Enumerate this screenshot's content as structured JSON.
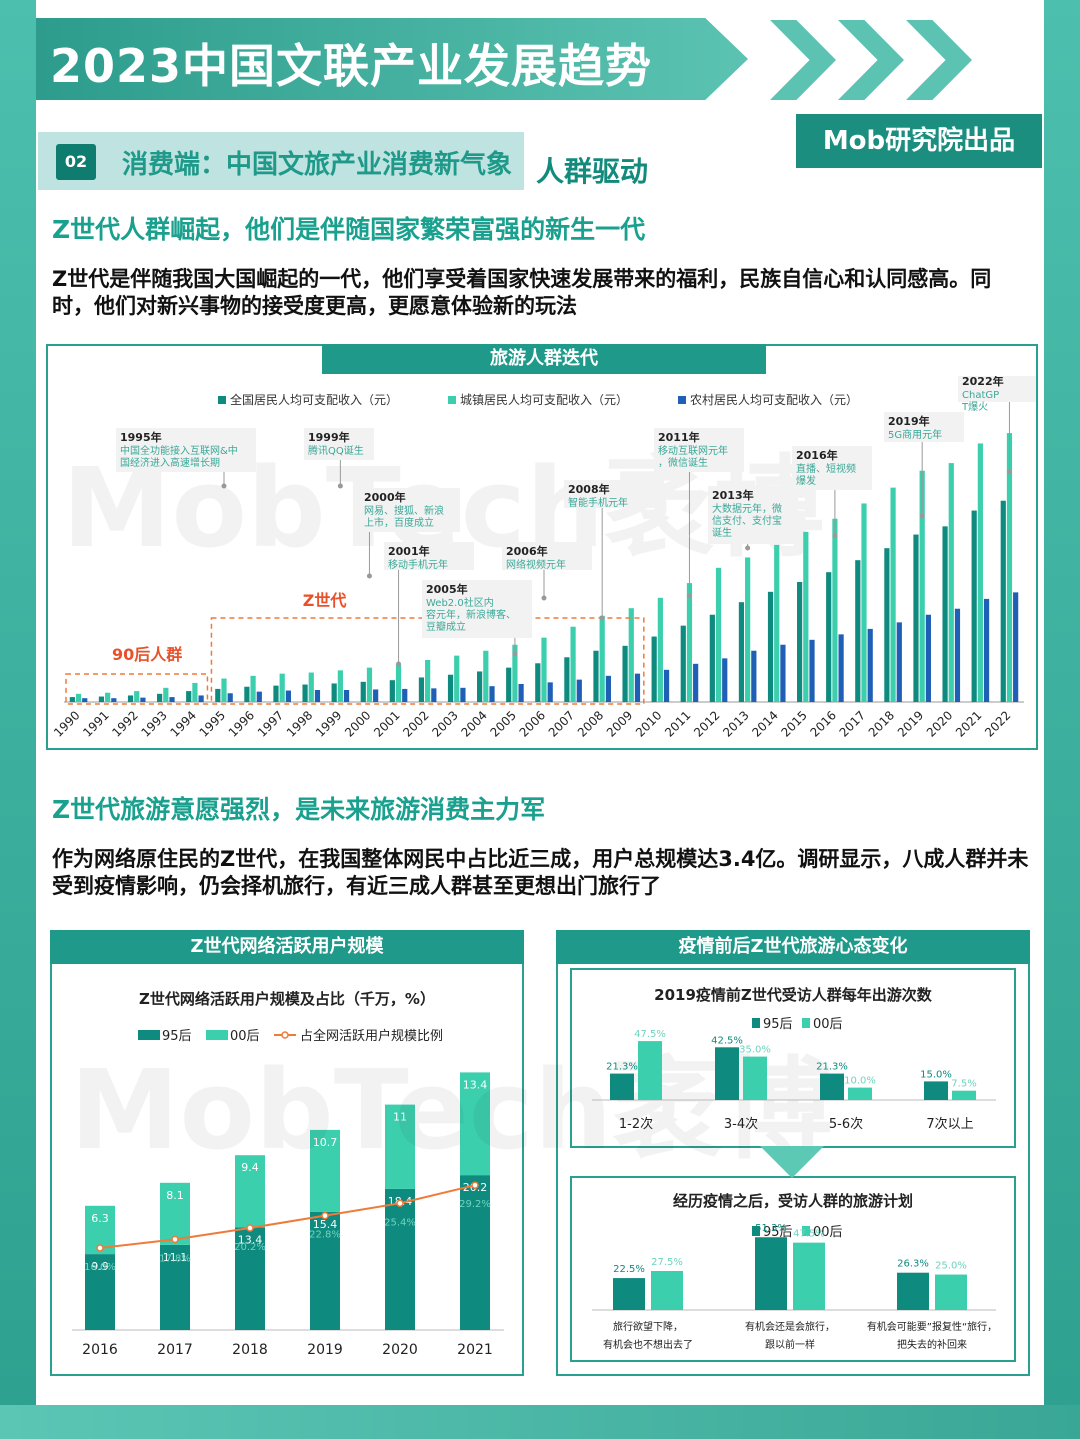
{
  "header": {
    "title": "2023中国文联产业发展趋势",
    "badge": "Mob研究院出品"
  },
  "section": {
    "number": "02",
    "label": "消费端：中国文旅产业消费新气象",
    "tag": "人群驱动"
  },
  "block1": {
    "heading": "Z世代人群崛起，他们是伴随国家繁荣富强的新生一代",
    "para": "Z世代是伴随我国大国崛起的一代，他们享受着国家快速发展带来的福利，民族自信心和认同感高。同时，他们对新兴事物的接受度更高，更愿意体验新的玩法"
  },
  "block2": {
    "heading": "Z世代旅游意愿强烈，是未来旅游消费主力军",
    "para": "作为网络原住民的Z世代，在我国整体网民中占比近三成，用户总规模达3.4亿。调研显示，八成人群并未受到疫情影响，仍会择机旅行，有近三成人群甚至更想出门旅行了"
  },
  "watermark": "MobTech袤博",
  "colors": {
    "teal_dark": "#0f8a7e",
    "teal_light": "#3ccfae",
    "blue": "#1f5fb5",
    "orange": "#f07a3a",
    "red_label": "#e8512a"
  },
  "chart_data": [
    {
      "type": "bar",
      "title": "旅游人群迭代",
      "categories": [
        "1990",
        "1991",
        "1992",
        "1993",
        "1994",
        "1995",
        "1996",
        "1997",
        "1998",
        "1999",
        "2000",
        "2001",
        "2002",
        "2003",
        "2004",
        "2005",
        "2006",
        "2007",
        "2008",
        "2009",
        "2010",
        "2011",
        "2012",
        "2013",
        "2014",
        "2015",
        "2016",
        "2017",
        "2018",
        "2019",
        "2020",
        "2021",
        "2022"
      ],
      "series": [
        {
          "name": "全国居民人均可支配收入（元）",
          "color": "#0f8a7e",
          "values": [
            900,
            1000,
            1200,
            1500,
            2000,
            2400,
            2800,
            3000,
            3200,
            3400,
            3700,
            4000,
            4500,
            5000,
            5600,
            6300,
            7100,
            8200,
            9400,
            10300,
            12000,
            14000,
            16000,
            18300,
            20200,
            22000,
            23800,
            26000,
            28200,
            30700,
            32200,
            35100,
            36900
          ]
        },
        {
          "name": "城镇居民人均可支配收入（元）",
          "color": "#3ccfae",
          "values": [
            1500,
            1700,
            2000,
            2600,
            3500,
            4300,
            4800,
            5200,
            5400,
            5800,
            6300,
            6900,
            7700,
            8500,
            9400,
            10500,
            11800,
            13800,
            15800,
            17200,
            19100,
            21800,
            24600,
            26500,
            28800,
            31200,
            33600,
            36400,
            39300,
            42400,
            43800,
            47400,
            49300
          ]
        },
        {
          "name": "农村居民人均可支配收入（元）",
          "color": "#1f5fb5",
          "values": [
            700,
            700,
            800,
            900,
            1200,
            1600,
            1900,
            2100,
            2200,
            2200,
            2300,
            2400,
            2500,
            2600,
            2900,
            3300,
            3600,
            4100,
            4800,
            5200,
            5900,
            7000,
            8000,
            9400,
            10500,
            11400,
            12400,
            13400,
            14600,
            16000,
            17100,
            18900,
            20100
          ]
        }
      ],
      "ylim": [
        0,
        55000
      ],
      "milestones": [
        {
          "year": "1995年",
          "text": "中国全功能接入互联网&中国经济进入高速增长期",
          "at": "1995"
        },
        {
          "year": "1999年",
          "text": "腾讯QQ诞生",
          "at": "1999"
        },
        {
          "year": "2000年",
          "text": "网易、搜狐、新浪上市，百度成立",
          "at": "2000"
        },
        {
          "year": "2001年",
          "text": "移动手机元年",
          "at": "2001"
        },
        {
          "year": "2005年",
          "text": "Web2.0社区内容元年，新浪博客、豆瓣成立",
          "at": "2005"
        },
        {
          "year": "2006年",
          "text": "网络视频元年",
          "at": "2006"
        },
        {
          "year": "2008年",
          "text": "智能手机元年",
          "at": "2008"
        },
        {
          "year": "2011年",
          "text": "移动互联网元年，微信诞生",
          "at": "2011"
        },
        {
          "year": "2013年",
          "text": "大数据元年，微信支付、支付宝诞生",
          "at": "2013"
        },
        {
          "year": "2016年",
          "text": "直播、短视频爆发",
          "at": "2016"
        },
        {
          "year": "2019年",
          "text": "5G商用元年",
          "at": "2019"
        },
        {
          "year": "2022年",
          "text": "ChatGPT爆火",
          "at": "2022"
        }
      ],
      "groups": [
        {
          "label": "90后人群",
          "from": "1990",
          "to": "1994"
        },
        {
          "label": "Z世代",
          "from": "1995",
          "to": "2009"
        }
      ]
    },
    {
      "type": "bar",
      "card_title": "Z世代网络活跃用户规模",
      "title": "Z世代网络活跃用户规模及占比（千万，%）",
      "categories": [
        "2016",
        "2017",
        "2018",
        "2019",
        "2020",
        "2021"
      ],
      "series": [
        {
          "name": "95后",
          "color": "#0f8a7e",
          "values": [
            9.9,
            11.1,
            13.4,
            15.4,
            18.4,
            20.2
          ]
        },
        {
          "name": "00后",
          "color": "#3ccfae",
          "values": [
            6.3,
            8.1,
            9.4,
            10.7,
            11.0,
            13.4
          ]
        }
      ],
      "line": {
        "name": "占全网活跃用户规模比例",
        "color": "#f07a3a",
        "values": [
          16.0,
          17.8,
          20.2,
          22.8,
          25.4,
          29.2
        ],
        "labels": [
          "16.0%",
          "17.8%",
          "20.2%",
          "22.8%",
          "25.4%",
          "29.2%"
        ]
      },
      "ylim": [
        0,
        36
      ]
    },
    {
      "type": "bar",
      "card_title": "疫情前后Z世代旅游心态变化",
      "title": "2019疫情前Z世代受访人群每年出游次数",
      "categories": [
        "1-2次",
        "3-4次",
        "5-6次",
        "7次以上"
      ],
      "series": [
        {
          "name": "95后",
          "color": "#0f8a7e",
          "values": [
            21.3,
            42.5,
            21.3,
            15.0
          ],
          "labels": [
            "21.3%",
            "42.5%",
            "21.3%",
            "15.0%"
          ]
        },
        {
          "name": "00后",
          "color": "#3ccfae",
          "values": [
            47.5,
            35.0,
            10.0,
            7.5
          ],
          "labels": [
            "47.5%",
            "35.0%",
            "10.0%",
            "7.5%"
          ]
        }
      ],
      "ylim": [
        0,
        50
      ]
    },
    {
      "type": "bar",
      "title": "经历疫情之后，受访人群的旅游计划",
      "categories": [
        "旅行欲望下降，有机会也不想出去了",
        "有机会还是会旅行，跟以前一样",
        "有机会可能要”报复性“旅行，把失去的补回来"
      ],
      "series": [
        {
          "name": "95后",
          "color": "#0f8a7e",
          "values": [
            22.5,
            51.3,
            26.3
          ],
          "labels": [
            "22.5%",
            "51.3%",
            "26.3%"
          ]
        },
        {
          "name": "00后",
          "color": "#3ccfae",
          "values": [
            27.5,
            47.5,
            25.0
          ],
          "labels": [
            "27.5%",
            "47.5%",
            "25.0%"
          ]
        }
      ],
      "ylim": [
        0,
        55
      ]
    }
  ]
}
